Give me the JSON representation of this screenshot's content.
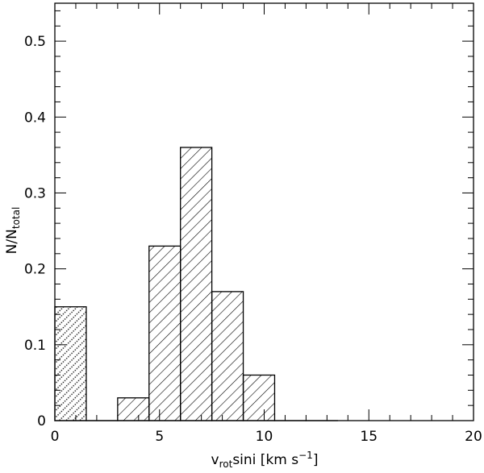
{
  "chart_data": {
    "type": "histogram",
    "bins": [
      0,
      1.5,
      3,
      4.5,
      6,
      7.5,
      9,
      10.5,
      12,
      13.5
    ],
    "values": [
      0.15,
      0,
      0.03,
      0.23,
      0.36,
      0.17,
      0.06,
      0,
      0
    ],
    "hatches": [
      "dots",
      "diagonal",
      "diagonal",
      "diagonal",
      "diagonal",
      "diagonal",
      "diagonal",
      "diagonal",
      "diagonal"
    ],
    "color": "#000000",
    "xlim": [
      0,
      20
    ],
    "ylim": [
      0,
      0.55
    ],
    "xticks": [
      0,
      5,
      10,
      15,
      20
    ],
    "yticks": [
      0,
      0.1,
      0.2,
      0.3,
      0.4,
      0.5
    ],
    "xminorticks": [
      1,
      2,
      3,
      4,
      6,
      7,
      8,
      9,
      11,
      12,
      13,
      14,
      16,
      17,
      18,
      19
    ],
    "yminorticks": [
      0.02,
      0.04,
      0.06,
      0.08,
      0.12,
      0.14,
      0.16,
      0.18,
      0.22,
      0.24,
      0.26,
      0.28,
      0.32,
      0.34,
      0.36,
      0.38,
      0.42,
      0.44,
      0.46,
      0.48,
      0.52,
      0.54
    ],
    "xlabel": {
      "main": "v",
      "sub": "rot",
      "rest": "sini  [km s",
      "sup": "−1",
      "end": "]"
    },
    "ylabel": {
      "main": "N/N",
      "sub": "total"
    }
  }
}
